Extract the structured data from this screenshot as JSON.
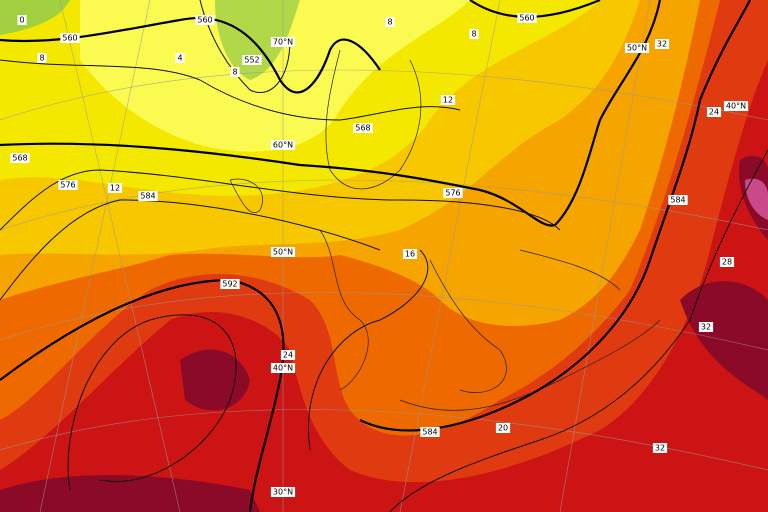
{
  "map": {
    "latitude_labels": [
      "70°N",
      "60°N",
      "50°N",
      "50°N",
      "40°N",
      "40°N",
      "30°N"
    ],
    "contour_labels": [
      "560",
      "8",
      "0",
      "560",
      "4",
      "8",
      "552",
      "560",
      "8",
      "8",
      "32",
      "12",
      "568",
      "568",
      "576",
      "12",
      "584",
      "576",
      "584",
      "24",
      "16",
      "592",
      "28",
      "24",
      "32",
      "584",
      "20",
      "32"
    ]
  }
}
